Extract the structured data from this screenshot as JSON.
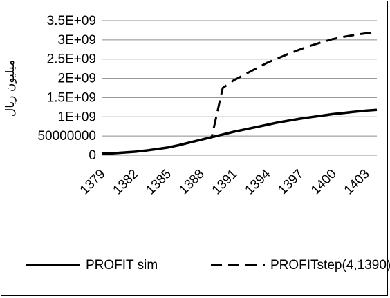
{
  "chart_data": {
    "type": "line",
    "title": "",
    "xlabel": "",
    "ylabel": "میلیون ریال",
    "x": [
      1379,
      1380,
      1381,
      1382,
      1383,
      1384,
      1385,
      1386,
      1387,
      1388,
      1389,
      1390,
      1391,
      1392,
      1393,
      1394,
      1395,
      1396,
      1397,
      1398,
      1399,
      1400,
      1401,
      1402,
      1403,
      1404
    ],
    "xticks": [
      "1379",
      "1382",
      "1385",
      "1388",
      "1391",
      "1394",
      "1397",
      "1400",
      "1403"
    ],
    "yticks": [
      "0",
      "50000000",
      "1E+09",
      "1.5E+09",
      "2E+09",
      "2.5E+09",
      "3E+09",
      "3.5E+09"
    ],
    "ylim": [
      0,
      3500000000
    ],
    "grid": "horizontal",
    "legend": "bottom",
    "series": [
      {
        "name": "PROFIT sim",
        "style": "solid",
        "color": "#000000",
        "values": [
          40000000,
          50000000,
          70000000,
          90000000,
          120000000,
          160000000,
          200000000,
          260000000,
          330000000,
          400000000,
          470000000,
          540000000,
          610000000,
          670000000,
          730000000,
          790000000,
          850000000,
          900000000,
          950000000,
          990000000,
          1030000000,
          1070000000,
          1100000000,
          1130000000,
          1160000000,
          1180000000
        ]
      },
      {
        "name": "PROFITstep(4,1390)",
        "style": "dashed",
        "color": "#000000",
        "values": [
          40000000,
          50000000,
          70000000,
          90000000,
          120000000,
          160000000,
          200000000,
          260000000,
          330000000,
          400000000,
          470000000,
          1750000000,
          1950000000,
          2100000000,
          2250000000,
          2400000000,
          2520000000,
          2640000000,
          2750000000,
          2850000000,
          2940000000,
          3020000000,
          3080000000,
          3130000000,
          3170000000,
          3200000000
        ]
      }
    ]
  }
}
